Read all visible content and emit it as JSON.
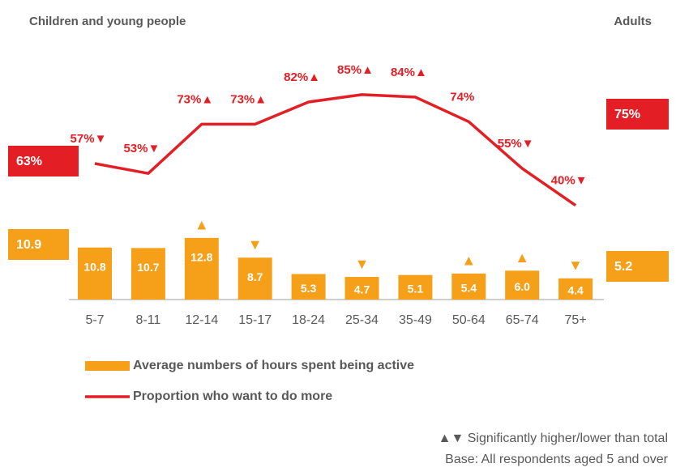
{
  "chart_data": {
    "type": "bar-line",
    "left_heading": "Children and young people",
    "right_heading": "Adults",
    "categories": [
      "5-7",
      "8-11",
      "12-14",
      "15-17",
      "18-24",
      "25-34",
      "35-49",
      "50-64",
      "65-74",
      "75+"
    ],
    "series": [
      {
        "name": "Average numbers of hours spent being active",
        "color": "#f6a01a",
        "kind": "bar",
        "values": [
          10.8,
          10.7,
          12.8,
          8.7,
          5.3,
          4.7,
          5.1,
          5.4,
          6.0,
          4.4
        ],
        "value_labels": [
          "10.8",
          "10.7",
          "12.8",
          "8.7",
          "5.3",
          "4.7",
          "5.1",
          "5.4",
          "6.0",
          "4.4"
        ],
        "markers": [
          null,
          null,
          "▲",
          "▼",
          null,
          "▼",
          null,
          "▲",
          "▲",
          "▼"
        ],
        "totals": {
          "children": 10.9,
          "adults": 5.2
        }
      },
      {
        "name": "Proportion who want to do more",
        "color": "#e31e24",
        "kind": "line",
        "values": [
          57,
          53,
          73,
          73,
          82,
          85,
          84,
          74,
          55,
          40
        ],
        "value_labels": [
          "57%",
          "53%",
          "73%",
          "73%",
          "82%",
          "85%",
          "84%",
          "74%",
          "55%",
          "40%"
        ],
        "markers": [
          "▼",
          "▼",
          "▲",
          "▲",
          "▲",
          "▲",
          "▲",
          null,
          "▼",
          "▼"
        ],
        "totals": {
          "children": 63,
          "adults": 75
        },
        "total_labels": {
          "children": "63%",
          "adults": "75%"
        }
      }
    ],
    "notes": [
      "▲▼ Significantly higher/lower than total",
      "Base: All respondents aged 5 and over"
    ]
  }
}
